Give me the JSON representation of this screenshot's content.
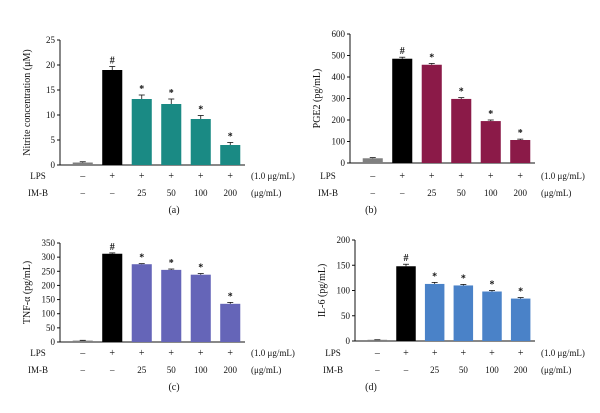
{
  "figure": {
    "panels": [
      "(a)",
      "(b)",
      "(c)",
      "(d)"
    ]
  },
  "conditions": {
    "lps_label": "LPS",
    "imb_label": "IM-B",
    "lps_row": [
      "–",
      "+",
      "+",
      "+",
      "+",
      "+"
    ],
    "imb_row": [
      "–",
      "–",
      "25",
      "50",
      "100",
      "200"
    ],
    "lps_unit": "(1.0 μg/mL)",
    "imb_unit": "(μg/mL)"
  },
  "chart_data": [
    {
      "type": "bar",
      "panel": "(a)",
      "ylabel": "Nitrite concentration (μM)",
      "ylim": [
        0,
        25
      ],
      "yticks": [
        0,
        5,
        10,
        15,
        20,
        25
      ],
      "values": [
        0.5,
        19.0,
        13.2,
        12.2,
        9.2,
        4.0
      ],
      "errors": [
        0.15,
        0.7,
        0.8,
        1.0,
        0.7,
        0.5
      ],
      "significance": [
        "",
        "#",
        "*",
        "*",
        "*",
        "*"
      ],
      "colors": [
        "#808080",
        "#000000",
        "#1a8a84",
        "#1a8a84",
        "#1a8a84",
        "#1a8a84"
      ]
    },
    {
      "type": "bar",
      "panel": "(b)",
      "ylabel": "PGE2 (pg/mL)",
      "ylim": [
        0,
        600
      ],
      "yticks": [
        0,
        100,
        200,
        300,
        400,
        500,
        600
      ],
      "values": [
        22,
        485,
        457,
        298,
        195,
        107
      ],
      "errors": [
        3,
        7,
        6,
        6,
        5,
        4
      ],
      "significance": [
        "",
        "#",
        "*",
        "*",
        "*",
        "*"
      ],
      "colors": [
        "#808080",
        "#000000",
        "#8b1a48",
        "#8b1a48",
        "#8b1a48",
        "#8b1a48"
      ]
    },
    {
      "type": "bar",
      "panel": "(c)",
      "ylabel": "TNF-α (pg/mL)",
      "ylim": [
        0,
        350
      ],
      "yticks": [
        0,
        50,
        100,
        150,
        200,
        250,
        300,
        350
      ],
      "values": [
        5,
        312,
        275,
        255,
        238,
        135
      ],
      "errors": [
        1,
        3,
        2,
        3,
        4,
        5
      ],
      "significance": [
        "",
        "#",
        "*",
        "*",
        "*",
        "*"
      ],
      "colors": [
        "#808080",
        "#000000",
        "#6565b8",
        "#6565b8",
        "#6565b8",
        "#6565b8"
      ]
    },
    {
      "type": "bar",
      "panel": "(d)",
      "ylabel": "IL-6 (pg/mL)",
      "ylim": [
        0,
        200
      ],
      "yticks": [
        0,
        50,
        100,
        150,
        200
      ],
      "values": [
        2,
        148,
        113,
        110,
        98,
        84
      ],
      "errors": [
        0.5,
        4,
        3,
        2,
        2,
        2
      ],
      "significance": [
        "",
        "#",
        "*",
        "*",
        "*",
        "*"
      ],
      "colors": [
        "#808080",
        "#000000",
        "#4a82c8",
        "#4a82c8",
        "#4a82c8",
        "#4a82c8"
      ]
    }
  ]
}
